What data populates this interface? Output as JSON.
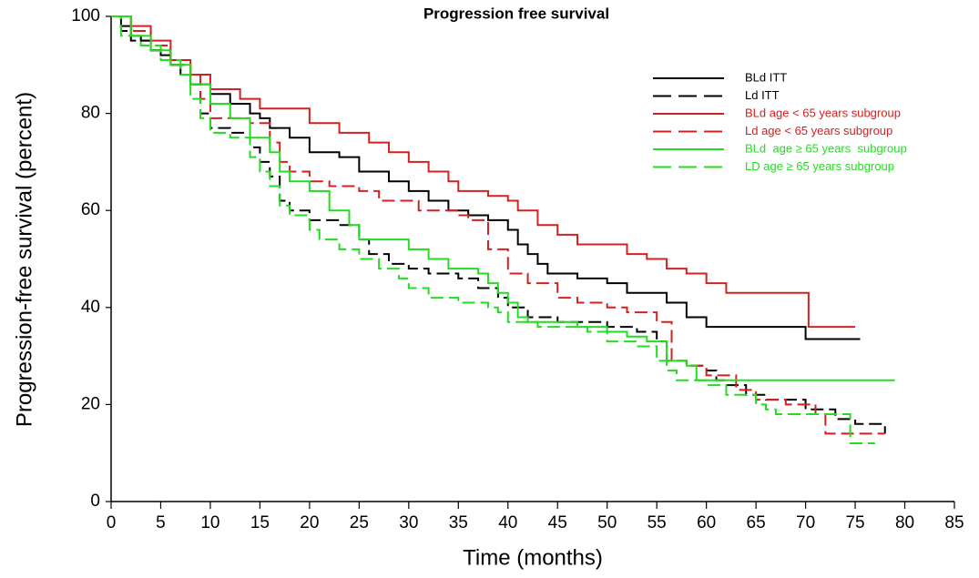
{
  "chart_data": {
    "type": "line",
    "step": "post",
    "title": "Progression free survival",
    "x_label": "Time (months)",
    "y_label": "Progression-free survival (percent)",
    "xlim": [
      0,
      85
    ],
    "xticks": [
      0,
      5,
      10,
      15,
      20,
      25,
      30,
      35,
      40,
      45,
      50,
      55,
      60,
      65,
      70,
      75,
      80,
      85
    ],
    "ylim": [
      0,
      100
    ],
    "yticks": [
      0,
      20,
      40,
      60,
      80,
      100
    ],
    "legend": "upper right",
    "series": [
      {
        "name": "BLd ITT",
        "color": "#000000",
        "dashed": false,
        "x": [
          0,
          1,
          2,
          3,
          4,
          5,
          6,
          7,
          8,
          10,
          12,
          14,
          15,
          16,
          18,
          20,
          23,
          25,
          28,
          30,
          32,
          34,
          36,
          38,
          40,
          41,
          42,
          43,
          44,
          47,
          50,
          52,
          56,
          58,
          60,
          70,
          75.5
        ],
        "values": [
          100,
          98,
          96,
          95,
          93,
          92,
          90,
          88,
          86,
          84,
          82,
          80,
          79,
          77,
          75,
          72,
          71,
          68,
          66,
          64,
          62,
          60,
          59,
          58,
          56,
          53,
          51,
          49,
          47,
          46,
          45,
          43,
          41,
          38,
          36,
          33.5,
          33.5
        ]
      },
      {
        "name": "Ld ITT",
        "color": "#000000",
        "dashed": true,
        "x": [
          0,
          1,
          2,
          4,
          6,
          8,
          9,
          10,
          12,
          14,
          15,
          16,
          17,
          18,
          20,
          23,
          25,
          26,
          28,
          30,
          32,
          35,
          37,
          39,
          40,
          42,
          45,
          50,
          53,
          55,
          56,
          58,
          60,
          61,
          62,
          64,
          66,
          70,
          73,
          75,
          78
        ],
        "values": [
          100,
          97,
          95,
          93,
          90,
          86,
          80,
          77,
          76,
          73,
          70,
          67,
          62,
          60,
          58,
          57,
          54,
          51,
          49,
          48,
          47,
          46,
          44,
          42,
          40,
          38,
          37,
          36,
          35,
          33,
          29,
          28,
          27,
          25,
          24,
          22,
          21,
          19,
          17,
          16,
          14
        ]
      },
      {
        "name": "BLd age < 65 years subgroup",
        "color": "#d42020",
        "dashed": false,
        "x": [
          0,
          2,
          4,
          6,
          8,
          10,
          13,
          15,
          20,
          23,
          26,
          28,
          30,
          32,
          34,
          35,
          38,
          40,
          41,
          43,
          45,
          47,
          52,
          54,
          56,
          58,
          60,
          62,
          70,
          70.3,
          75
        ],
        "values": [
          100,
          98,
          95,
          91,
          88,
          85,
          83,
          81,
          78,
          76,
          74,
          72,
          70,
          68,
          66,
          64,
          63,
          62,
          60,
          57,
          55,
          53,
          51,
          50,
          48,
          47,
          45,
          43,
          43,
          36,
          36
        ]
      },
      {
        "name": "Ld age < 65 years subgroup",
        "color": "#d42020",
        "dashed": true,
        "x": [
          0,
          2,
          4,
          6,
          8,
          9,
          10,
          14,
          16,
          17,
          18,
          20,
          22,
          25,
          27,
          31,
          35,
          36,
          38,
          40,
          42,
          45,
          47,
          50,
          52,
          55,
          56.5,
          58,
          60,
          63,
          65,
          68,
          71,
          72,
          78
        ],
        "values": [
          100,
          97,
          94,
          90,
          88,
          83,
          79,
          78,
          74,
          70,
          68,
          66,
          65,
          64,
          62,
          60,
          59,
          58,
          52,
          47,
          45,
          42,
          41,
          40,
          39,
          37,
          29,
          28,
          26,
          23,
          21,
          20,
          18,
          14,
          14
        ]
      },
      {
        "name": "BLd  age ≥ 65 years  subgroup",
        "color": "#22dd22",
        "dashed": false,
        "x": [
          0,
          2,
          4,
          6,
          8,
          10,
          12,
          14,
          16,
          17,
          18,
          20,
          22,
          24,
          25,
          30,
          32,
          34,
          37,
          38,
          39,
          40,
          41,
          42,
          47,
          50,
          52,
          54,
          56,
          58,
          59,
          79
        ],
        "values": [
          100,
          96,
          93,
          90,
          86,
          82,
          79,
          75,
          72,
          68,
          66,
          64,
          60,
          57,
          54,
          52,
          50,
          48,
          47,
          45,
          43,
          41,
          38,
          37,
          36,
          35,
          34,
          33,
          29,
          28,
          25,
          25
        ]
      },
      {
        "name": "LD age ≥ 65 years subgroup",
        "color": "#22dd22",
        "dashed": true,
        "x": [
          0,
          1,
          3,
          5,
          7,
          8,
          9,
          10,
          12,
          14,
          15,
          16,
          17,
          18,
          20,
          21,
          23,
          25,
          27,
          29,
          30,
          32,
          35,
          38,
          39,
          40,
          43,
          48,
          50,
          53,
          55,
          56,
          57,
          60,
          62,
          65,
          66,
          67,
          74,
          74.5,
          77
        ],
        "values": [
          100,
          96,
          94,
          91,
          88,
          83,
          79,
          76,
          75,
          71,
          68,
          65,
          61,
          59,
          56,
          54,
          52,
          50,
          48,
          46,
          44,
          42,
          41,
          40,
          39,
          37,
          36,
          35,
          33,
          32,
          29,
          27,
          25,
          24,
          22,
          20,
          19,
          18,
          18,
          12,
          12
        ]
      }
    ]
  }
}
